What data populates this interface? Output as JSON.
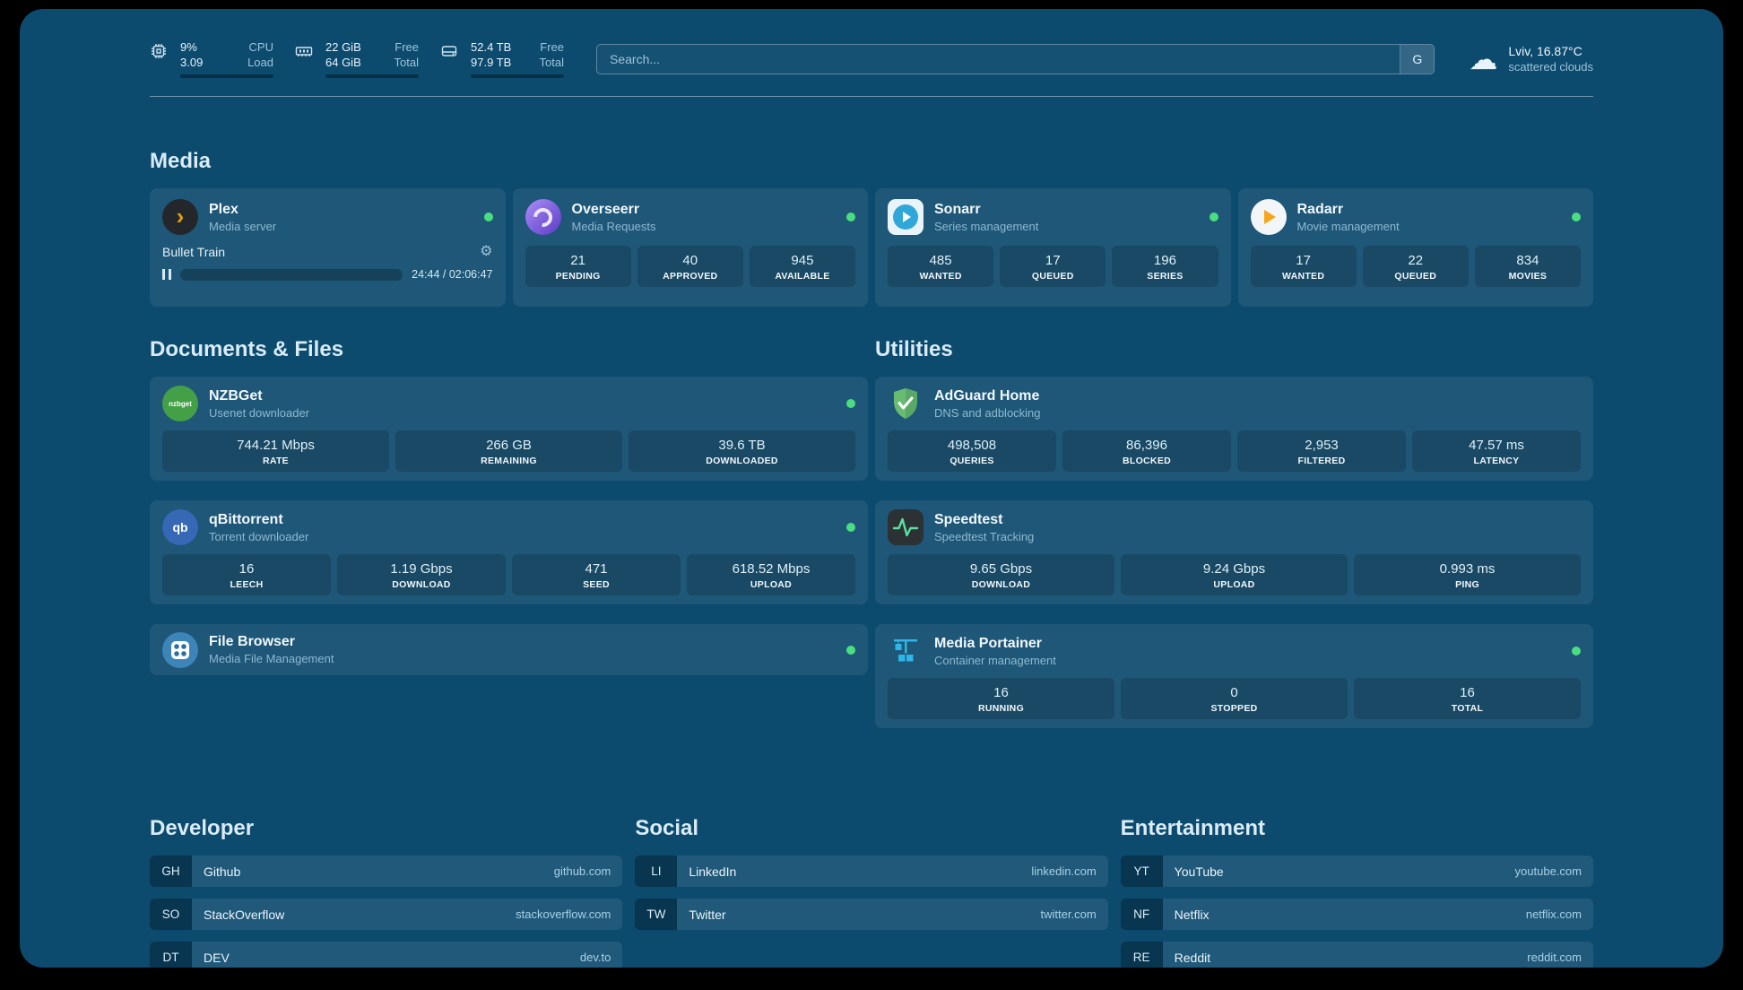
{
  "colors": {
    "background": "#0c4a6e",
    "status_online": "#4ade80",
    "accent_orange": "#e5a00d"
  },
  "topbar": {
    "resources": [
      {
        "icon": "cpu-icon",
        "rows": [
          {
            "value": "9%",
            "label": "CPU"
          },
          {
            "value": "3.09",
            "label": "Load"
          }
        ],
        "progress_pct": 9
      },
      {
        "icon": "memory-icon",
        "rows": [
          {
            "value": "22 GiB",
            "label": "Free"
          },
          {
            "value": "64 GiB",
            "label": "Total"
          }
        ],
        "progress_pct": 66
      },
      {
        "icon": "disk-icon",
        "rows": [
          {
            "value": "52.4 TB",
            "label": "Free"
          },
          {
            "value": "97.9 TB",
            "label": "Total"
          }
        ],
        "progress_pct": 47
      }
    ],
    "search": {
      "placeholder": "Search...",
      "provider_button": "G"
    },
    "weather": {
      "location": "Lviv, 16.87°C",
      "condition": "scattered clouds"
    }
  },
  "media": {
    "title": "Media",
    "plex": {
      "name": "Plex",
      "desc": "Media server",
      "icon_glyph": "›",
      "gear_glyph": "⚙",
      "now_playing": {
        "title": "Bullet Train",
        "time": "24:44 / 02:06:47",
        "progress_pct": 19
      }
    },
    "overseerr": {
      "name": "Overseerr",
      "desc": "Media Requests",
      "stats": [
        {
          "v": "21",
          "l": "PENDING"
        },
        {
          "v": "40",
          "l": "APPROVED"
        },
        {
          "v": "945",
          "l": "AVAILABLE"
        }
      ]
    },
    "sonarr": {
      "name": "Sonarr",
      "desc": "Series management",
      "stats": [
        {
          "v": "485",
          "l": "WANTED"
        },
        {
          "v": "17",
          "l": "QUEUED"
        },
        {
          "v": "196",
          "l": "SERIES"
        }
      ]
    },
    "radarr": {
      "name": "Radarr",
      "desc": "Movie management",
      "stats": [
        {
          "v": "17",
          "l": "WANTED"
        },
        {
          "v": "22",
          "l": "QUEUED"
        },
        {
          "v": "834",
          "l": "MOVIES"
        }
      ]
    }
  },
  "documents": {
    "title": "Documents & Files",
    "nzbget": {
      "name": "NZBGet",
      "desc": "Usenet downloader",
      "icon_text": "nzbget",
      "stats": [
        {
          "v": "744.21 Mbps",
          "l": "RATE"
        },
        {
          "v": "266 GB",
          "l": "REMAINING"
        },
        {
          "v": "39.6 TB",
          "l": "DOWNLOADED"
        }
      ]
    },
    "qbittorrent": {
      "name": "qBittorrent",
      "desc": "Torrent downloader",
      "icon_text": "qb",
      "stats": [
        {
          "v": "16",
          "l": "LEECH"
        },
        {
          "v": "1.19 Gbps",
          "l": "DOWNLOAD"
        },
        {
          "v": "471",
          "l": "SEED"
        },
        {
          "v": "618.52 Mbps",
          "l": "UPLOAD"
        }
      ]
    },
    "filebrowser": {
      "name": "File Browser",
      "desc": "Media File Management"
    }
  },
  "utilities": {
    "title": "Utilities",
    "adguard": {
      "name": "AdGuard Home",
      "desc": "DNS and adblocking",
      "stats": [
        {
          "v": "498,508",
          "l": "QUERIES"
        },
        {
          "v": "86,396",
          "l": "BLOCKED"
        },
        {
          "v": "2,953",
          "l": "FILTERED"
        },
        {
          "v": "47.57 ms",
          "l": "LATENCY"
        }
      ]
    },
    "speedtest": {
      "name": "Speedtest",
      "desc": "Speedtest Tracking",
      "stats": [
        {
          "v": "9.65 Gbps",
          "l": "DOWNLOAD"
        },
        {
          "v": "9.24 Gbps",
          "l": "UPLOAD"
        },
        {
          "v": "0.993 ms",
          "l": "PING"
        }
      ]
    },
    "portainer": {
      "name": "Media Portainer",
      "desc": "Container management",
      "stats": [
        {
          "v": "16",
          "l": "RUNNING"
        },
        {
          "v": "0",
          "l": "STOPPED"
        },
        {
          "v": "16",
          "l": "TOTAL"
        }
      ]
    }
  },
  "bookmarks": {
    "groups": [
      {
        "title": "Developer",
        "items": [
          {
            "abbr": "GH",
            "name": "Github",
            "url": "github.com"
          },
          {
            "abbr": "SO",
            "name": "StackOverflow",
            "url": "stackoverflow.com"
          },
          {
            "abbr": "DT",
            "name": "DEV",
            "url": "dev.to"
          }
        ]
      },
      {
        "title": "Social",
        "items": [
          {
            "abbr": "LI",
            "name": "LinkedIn",
            "url": "linkedin.com"
          },
          {
            "abbr": "TW",
            "name": "Twitter",
            "url": "twitter.com"
          }
        ]
      },
      {
        "title": "Entertainment",
        "items": [
          {
            "abbr": "YT",
            "name": "YouTube",
            "url": "youtube.com"
          },
          {
            "abbr": "NF",
            "name": "Netflix",
            "url": "netflix.com"
          },
          {
            "abbr": "RE",
            "name": "Reddit",
            "url": "reddit.com"
          }
        ]
      }
    ]
  }
}
